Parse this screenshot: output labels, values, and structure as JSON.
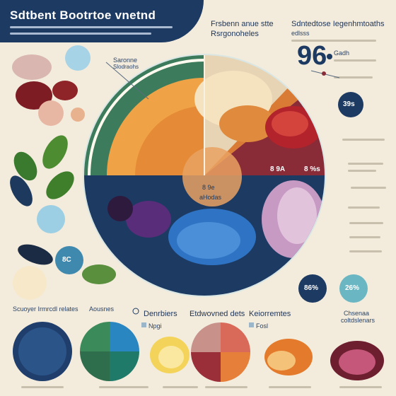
{
  "header": {
    "title": "Sdtbent Bootrtoe vnetnd",
    "right_heading_a": "Frsbenn anue stte",
    "right_heading_a2": "Rsrgonoheles",
    "right_heading_b": "Sdntedtose Iegenhmtoaths",
    "right_sub_b": "edlsss"
  },
  "stats": {
    "big_number": "96",
    "big_sub": "Gadh",
    "circle_top": "39s",
    "circle_small_a": "86%",
    "circle_small_b": "26%",
    "circle_mid": "8C"
  },
  "pie": {
    "callout_label": "Saronne",
    "callout_sub": "Slodraohs",
    "pct_a": "8 9A",
    "pct_b": "8 %s",
    "center_a": "8 9e",
    "center_b": "aHodas"
  },
  "bottom": {
    "left_heading": "Scuoyer Irmrcdl relates",
    "heading_2": "Aousnes",
    "heading_3": "Denrbiers",
    "heading_4": "Etdwovned dets",
    "heading_5": "Keiorremtes",
    "heading_6": "Chsenaa",
    "heading_6b": "coltdslenars",
    "tag_1": "Npgi",
    "tag_2": "Fosl"
  },
  "colors": {
    "navy": "#1c3a62",
    "orange": "#e8933a",
    "maroon": "#8a2b38",
    "green": "#3c7b5b",
    "teal": "#6ab7c3",
    "cream": "#f3ecdd"
  }
}
